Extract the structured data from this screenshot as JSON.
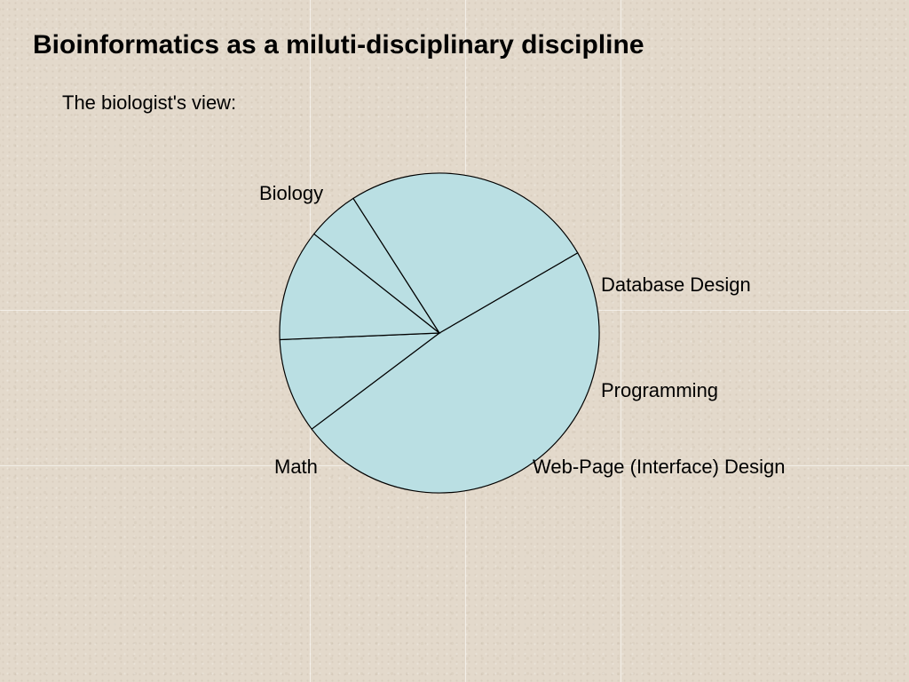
{
  "slide": {
    "title": "Bioinformatics as a miluti-disciplinary discipline",
    "subtitle": "The biologist's view:"
  },
  "colors": {
    "slice_fill": "#badfe3",
    "slice_stroke": "#000000",
    "background": "#e3d9cb"
  },
  "chart_data": {
    "type": "pie",
    "categories": [
      "Biology",
      "Database Design",
      "Programming",
      "Web-Page (Interface) Design",
      "Math"
    ],
    "values": [
      48.1,
      9.6,
      11.3,
      5.3,
      25.7
    ],
    "units": "percent (estimated)",
    "legend": "none (direct labels)"
  }
}
